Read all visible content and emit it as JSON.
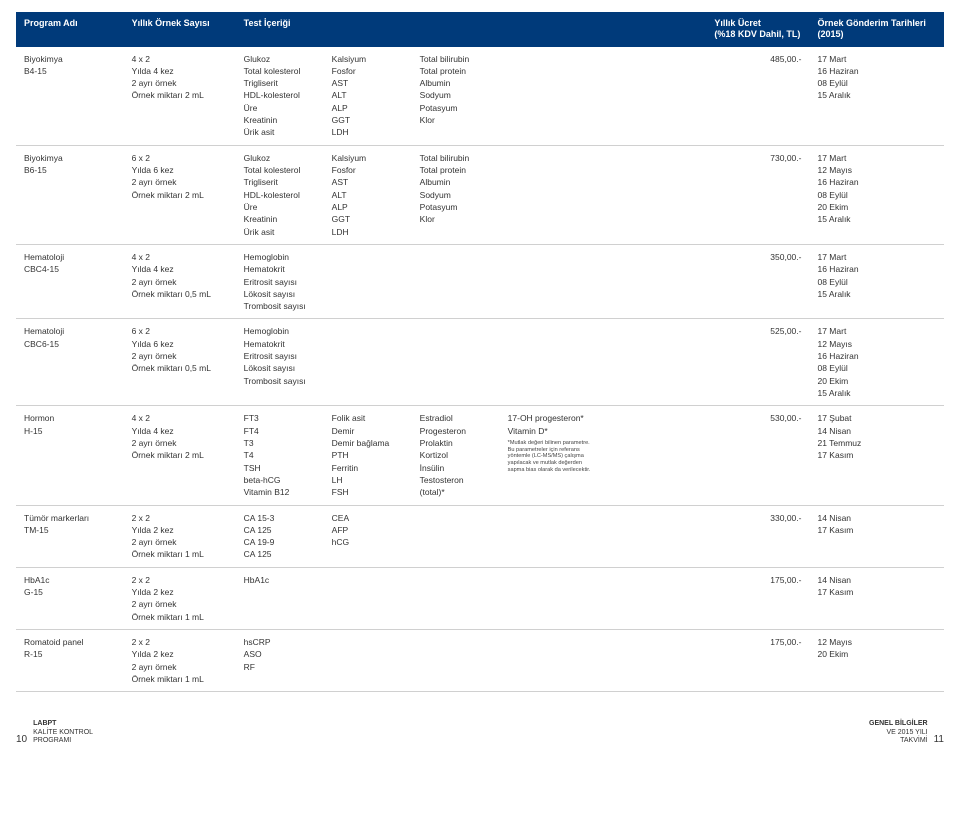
{
  "header": {
    "program": "Program Adı",
    "count": "Yıllık Örnek Sayısı",
    "tests": "Test İçeriği",
    "price": "Yıllık Ücret\n(%18 KDV Dahil, TL)",
    "dates": "Örnek Gönderim Tarihleri\n(2015)"
  },
  "rows": [
    {
      "name": "Biyokimya",
      "code": "B4-15",
      "count": [
        "4 x 2",
        "Yılda 4 kez",
        "2 ayrı örnek",
        "Örnek miktarı 2 mL"
      ],
      "tests": [
        [
          "Glukoz",
          "Total kolesterol",
          "Trigliserit",
          "HDL-kolesterol",
          "Üre",
          "Kreatinin",
          "Ürik asit"
        ],
        [
          "Kalsiyum",
          "Fosfor",
          "AST",
          "ALT",
          "ALP",
          "GGT",
          "LDH"
        ],
        [
          "Total bilirubin",
          "Total protein",
          "Albumin",
          "Sodyum",
          "Potasyum",
          "Klor"
        ]
      ],
      "price": "485,00.-",
      "dates": [
        "17 Mart",
        "16 Haziran",
        "08 Eylül",
        "15 Aralık"
      ]
    },
    {
      "name": "Biyokimya",
      "code": "B6-15",
      "count": [
        "6 x 2",
        "Yılda 6 kez",
        "2 ayrı örnek",
        "Örnek miktarı 2 mL"
      ],
      "tests": [
        [
          "Glukoz",
          "Total kolesterol",
          "Trigliserit",
          "HDL-kolesterol",
          "Üre",
          "Kreatinin",
          "Ürik asit"
        ],
        [
          "Kalsiyum",
          "Fosfor",
          "AST",
          "ALT",
          "ALP",
          "GGT",
          "LDH"
        ],
        [
          "Total bilirubin",
          "Total protein",
          "Albumin",
          "Sodyum",
          "Potasyum",
          "Klor"
        ]
      ],
      "price": "730,00.-",
      "dates": [
        "17 Mart",
        "12 Mayıs",
        "16 Haziran",
        "08 Eylül",
        "20 Ekim",
        "15 Aralık"
      ]
    },
    {
      "name": "Hematoloji",
      "code": "CBC4-15",
      "count": [
        "4 x 2",
        "Yılda 4 kez",
        "2 ayrı örnek",
        "Örnek miktarı 0,5 mL"
      ],
      "tests": [
        [
          "Hemoglobin",
          "Hematokrit",
          "Eritrosit sayısı",
          "Lökosit sayısı",
          "Trombosit sayısı"
        ]
      ],
      "price": "350,00.-",
      "dates": [
        "17 Mart",
        "16 Haziran",
        "08 Eylül",
        "15 Aralık"
      ]
    },
    {
      "name": "Hematoloji",
      "code": "CBC6-15",
      "count": [
        "6 x 2",
        "Yılda 6 kez",
        "2 ayrı örnek",
        "Örnek miktarı 0,5 mL"
      ],
      "tests": [
        [
          "Hemoglobin",
          "Hematokrit",
          "Eritrosit sayısı",
          "Lökosit sayısı",
          "Trombosit sayısı"
        ]
      ],
      "price": "525,00.-",
      "dates": [
        "17 Mart",
        "12 Mayıs",
        "16 Haziran",
        "08 Eylül",
        "20 Ekim",
        "15 Aralık"
      ]
    },
    {
      "name": "Hormon",
      "code": "H-15",
      "count": [
        "4 x 2",
        "Yılda 4 kez",
        "2 ayrı örnek",
        "Örnek miktarı 2 mL"
      ],
      "tests": [
        [
          "FT3",
          "FT4",
          "T3",
          "T4",
          "TSH",
          "beta-hCG",
          "Vitamin B12"
        ],
        [
          "Folik asit",
          "Demir",
          "Demir bağlama",
          "PTH",
          "Ferritin",
          "LH",
          "FSH"
        ],
        [
          "Estradiol",
          "Progesteron",
          "Prolaktin",
          "Kortizol",
          "İnsülin",
          "Testosteron",
          "(total)*"
        ],
        [
          "17-OH progesteron*",
          "Vitamin D*"
        ]
      ],
      "note": "*Mutlak değeri bilinen parametre. Bu parametreler için referans yöntemle (LC-MS/MS) çalışma yapılacak ve mutlak değerden sapma bias olarak da verilecektir.",
      "price": "530,00.-",
      "dates": [
        "17 Şubat",
        "14 Nisan",
        "21 Temmuz",
        "17 Kasım"
      ]
    },
    {
      "name": "Tümör markerları",
      "code": "TM-15",
      "count": [
        "2 x 2",
        "Yılda 2 kez",
        "2 ayrı örnek",
        "Örnek miktarı 1 mL"
      ],
      "tests": [
        [
          "CA 15-3",
          "CA 125",
          "CA 19-9",
          "CA 125"
        ],
        [
          "CEA",
          "AFP",
          "hCG"
        ]
      ],
      "price": "330,00.-",
      "dates": [
        "14 Nisan",
        "17 Kasım"
      ]
    },
    {
      "name": "HbA1c",
      "code": "G-15",
      "count": [
        "2 x 2",
        "Yılda 2 kez",
        "2 ayrı örnek",
        "Örnek miktarı 1 mL"
      ],
      "tests": [
        [
          "HbA1c"
        ]
      ],
      "price": "175,00.-",
      "dates": [
        "14 Nisan",
        "17 Kasım"
      ]
    },
    {
      "name": "Romatoid panel",
      "code": "R-15",
      "count": [
        "2 x 2",
        "Yılda 2 kez",
        "2 ayrı örnek",
        "Örnek miktarı 1 mL"
      ],
      "tests": [
        [
          "hsCRP",
          "ASO",
          "RF"
        ]
      ],
      "price": "175,00.-",
      "dates": [
        "12 Mayıs",
        "20 Ekim"
      ]
    }
  ],
  "footer": {
    "left_page": "10",
    "left_label_bold": "LABPT",
    "left_label_rest": "KALİTE KONTROL\nPROGRAMI",
    "right_label_bold": "GENEL BİLGİLER",
    "right_label_rest": "VE 2015 YILI\nTAKVİMİ",
    "right_page": "11"
  },
  "colors": {
    "header_bg": "#003a7a",
    "header_fg": "#ffffff",
    "row_border": "#d0d0d0",
    "text": "#333333"
  }
}
